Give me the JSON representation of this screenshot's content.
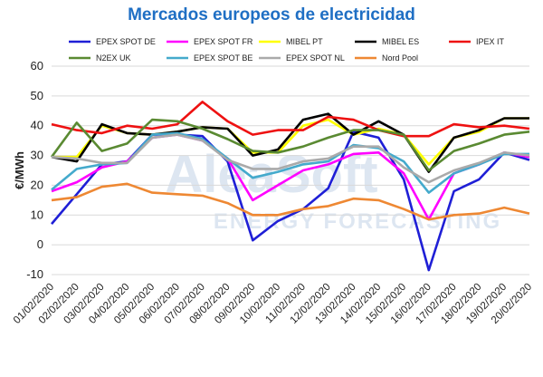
{
  "chart_data": {
    "type": "line",
    "title": "Mercados europeos de electricidad",
    "ylabel": "€/MWh",
    "xlabel": "",
    "ylim": [
      -10,
      60
    ],
    "yticks": [
      -10,
      0,
      10,
      20,
      30,
      40,
      50,
      60
    ],
    "grid": true,
    "legend_position": "top",
    "watermark": {
      "logo": "AleaSoft",
      "tagline": "ENERGY FORECASTING"
    },
    "x": [
      "01/02/2020",
      "02/02/2020",
      "03/02/2020",
      "04/02/2020",
      "05/02/2020",
      "06/02/2020",
      "07/02/2020",
      "08/02/2020",
      "09/02/2020",
      "10/02/2020",
      "11/02/2020",
      "12/02/2020",
      "13/02/2020",
      "14/02/2020",
      "15/02/2020",
      "16/02/2020",
      "17/02/2020",
      "18/02/2020",
      "19/02/2020",
      "20/02/2020"
    ],
    "series": [
      {
        "name": "EPEX SPOT DE",
        "color": "#1f1fd6",
        "values": [
          7,
          17,
          27,
          28,
          37,
          37,
          36.5,
          28,
          1.5,
          8,
          12,
          19,
          38,
          36,
          22,
          -8.5,
          18,
          22,
          31,
          28.5
        ]
      },
      {
        "name": "EPEX SPOT FR",
        "color": "#ff00ff",
        "values": [
          18,
          21,
          26,
          28,
          36,
          37,
          35,
          29,
          15,
          20,
          25,
          27,
          30.5,
          31,
          24,
          8.5,
          24,
          27,
          31,
          29.5
        ]
      },
      {
        "name": "MIBEL PT",
        "color": "#ffff00",
        "values": [
          29.5,
          29.5,
          40,
          37.5,
          37,
          38,
          39.5,
          39,
          31,
          31,
          40,
          42,
          37,
          39,
          37,
          27,
          36,
          38,
          42.5,
          42.5
        ]
      },
      {
        "name": "MIBEL ES",
        "color": "#000000",
        "values": [
          29.5,
          28,
          40.5,
          37.5,
          37,
          38,
          39.5,
          39,
          30,
          32,
          42,
          44,
          37,
          41.5,
          37,
          24.5,
          36,
          38.5,
          42.5,
          42.5
        ]
      },
      {
        "name": "IPEX IT",
        "color": "#ee1111",
        "values": [
          40.5,
          38.5,
          37.5,
          40,
          39,
          40.5,
          48,
          41.5,
          37,
          38.5,
          38.5,
          43,
          42,
          38.5,
          36.5,
          36.5,
          40.5,
          39.5,
          40,
          39
        ]
      },
      {
        "name": "N2EX UK",
        "color": "#5a8a32",
        "values": [
          29.5,
          41,
          31.5,
          34,
          42,
          41.5,
          39,
          35.5,
          31.5,
          31,
          33,
          36,
          38.5,
          38.5,
          37,
          25,
          31.5,
          34,
          37,
          38
        ]
      },
      {
        "name": "EPEX SPOT BE",
        "color": "#44aacc",
        "values": [
          18.5,
          25.5,
          27,
          27.5,
          37,
          37.5,
          35.5,
          29,
          22.5,
          24.5,
          27,
          28,
          33.5,
          32.5,
          28,
          17.5,
          24,
          27,
          30.5,
          30.5
        ]
      },
      {
        "name": "EPEX SPOT NL",
        "color": "#aaaaaa",
        "values": [
          29.5,
          29,
          27.5,
          27.5,
          36,
          37,
          35,
          28.5,
          25.5,
          25.5,
          28,
          29,
          33,
          33,
          26,
          21,
          25,
          27.5,
          31,
          30
        ]
      },
      {
        "name": "Nord Pool",
        "color": "#ee8833",
        "values": [
          15,
          16,
          19.5,
          20.5,
          17.5,
          17,
          16.5,
          14,
          10,
          10,
          12,
          13,
          15.5,
          15,
          12,
          8.5,
          10,
          10.5,
          12.5,
          10.5
        ]
      }
    ]
  }
}
